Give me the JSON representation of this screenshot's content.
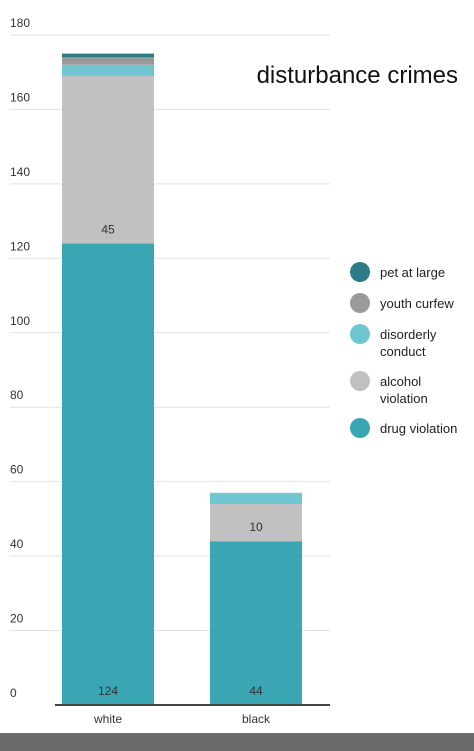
{
  "chart_data": {
    "type": "stacked_bar",
    "title": "disturbance crimes",
    "categories": [
      "white",
      "black"
    ],
    "series": [
      {
        "name": "drug violation",
        "color": "#3aa6b4",
        "values": [
          124,
          44
        ]
      },
      {
        "name": "alcohol violation",
        "color": "#c1c1c1",
        "values": [
          45,
          10
        ]
      },
      {
        "name": "disorderly conduct",
        "color": "#6fc6d1",
        "values": [
          3,
          3
        ]
      },
      {
        "name": "youth curfew",
        "color": "#9a9a9a",
        "values": [
          2,
          0
        ]
      },
      {
        "name": "pet at large",
        "color": "#2c7b87",
        "values": [
          1,
          0
        ]
      }
    ],
    "ylim": [
      0,
      180
    ],
    "yticks": [
      0,
      20,
      40,
      60,
      80,
      100,
      120,
      140,
      160,
      180
    ],
    "grid": true,
    "legend": "right"
  }
}
